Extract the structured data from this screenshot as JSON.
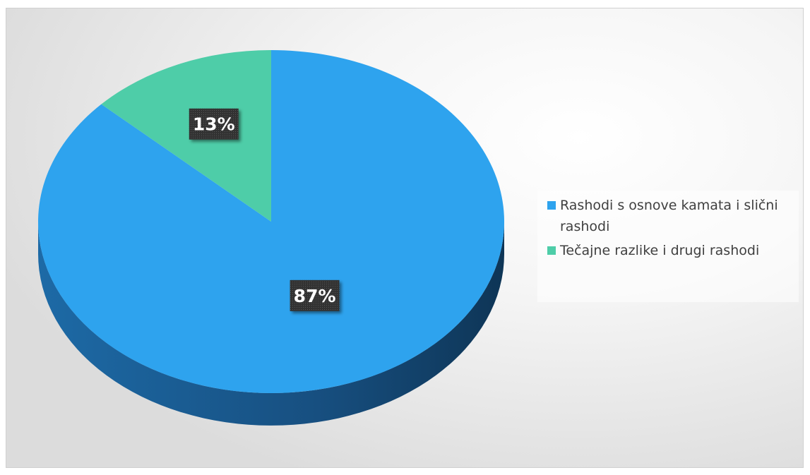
{
  "title": "",
  "chart_data": {
    "type": "pie",
    "title": "",
    "categories": [
      "Rashodi s osnove kamata i slični rashodi",
      "Tečajne razlike i drugi rashodi"
    ],
    "values": [
      87,
      13
    ],
    "data_labels": [
      "87%",
      "13%"
    ],
    "colors": [
      "#2ea3ee",
      "#4ecda8"
    ],
    "side_colors": [
      "#1a5a8c",
      "#1f7a66"
    ],
    "legend": {
      "placement": "right",
      "entries": [
        "Rashodi s osnove kamata i slični rashodi",
        "Tečajne razlike i drugi rashodi"
      ]
    },
    "style": "3d-pie"
  }
}
